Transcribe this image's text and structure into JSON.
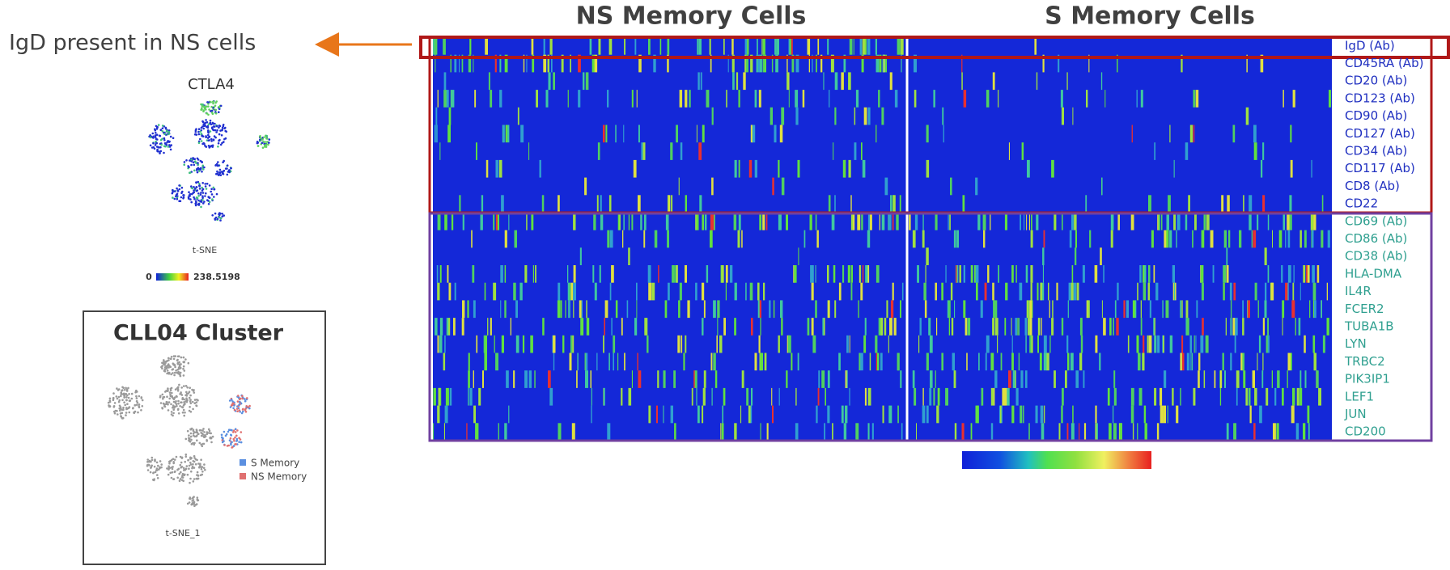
{
  "titles": {
    "ns": "NS Memory Cells",
    "s": "S Memory Cells"
  },
  "annotation": "IgD present in NS cells",
  "tsne_panel": {
    "title": "CTLA4",
    "axis": "t-SNE",
    "scale_min": "0",
    "scale_max": "238.5198"
  },
  "cluster_panel": {
    "title": "CLL04 Cluster",
    "legend": [
      "S Memory",
      "NS Memory"
    ],
    "axis": "t-SNE_1"
  },
  "genes": [
    "IgD (Ab)",
    "CD45RA (Ab)",
    "CD20 (Ab)",
    "CD123 (Ab)",
    "CD90 (Ab)",
    "CD127 (Ab)",
    "CD34 (Ab)",
    "CD117 (Ab)",
    "CD8 (Ab)",
    "CD22",
    "CD69 (Ab)",
    "CD86 (Ab)",
    "CD38 (Ab)",
    "HLA-DMA",
    "IL4R",
    "FCER2",
    "TUBA1B",
    "LYN",
    "TRBC2",
    "PIK3IP1",
    "LEF1",
    "JUN",
    "CD200"
  ]
}
